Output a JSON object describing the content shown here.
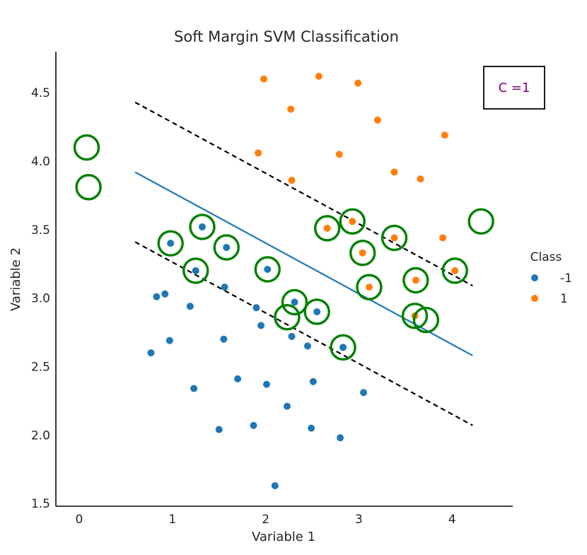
{
  "chart_data": {
    "type": "scatter",
    "title": "Soft Margin SVM Classification",
    "xlabel": "Variable 1",
    "ylabel": "Variable 2",
    "xlim": [
      -0.25,
      4.65
    ],
    "ylim": [
      1.48,
      4.8
    ],
    "xticks": [
      0,
      1,
      2,
      3,
      4
    ],
    "xtick_labels": [
      "0",
      "1",
      "2",
      "3",
      "4"
    ],
    "yticks": [
      1.5,
      2.0,
      2.5,
      3.0,
      3.5,
      4.0,
      4.5
    ],
    "ytick_labels": [
      "1.5",
      "2.0",
      "2.5",
      "3.0",
      "3.5",
      "4.0",
      "4.5"
    ],
    "grid": false,
    "legend": {
      "title": "Class",
      "placement": "outside-right",
      "entries": [
        {
          "label": "-1",
          "color": "#1f77b4"
        },
        {
          "label": "1",
          "color": "#ff7f0e"
        }
      ]
    },
    "annotation": {
      "text": "C =1",
      "color": "#800080",
      "placement": "top-right"
    },
    "series": [
      {
        "name": "-1",
        "color": "#1f77b4",
        "points": [
          [
            0.77,
            2.6
          ],
          [
            0.83,
            3.01
          ],
          [
            0.92,
            3.03
          ],
          [
            0.97,
            2.69
          ],
          [
            0.98,
            3.4
          ],
          [
            1.19,
            2.94
          ],
          [
            1.23,
            2.34
          ],
          [
            1.25,
            3.2
          ],
          [
            1.32,
            3.52
          ],
          [
            1.5,
            2.04
          ],
          [
            1.55,
            2.7
          ],
          [
            1.56,
            3.08
          ],
          [
            1.58,
            3.37
          ],
          [
            1.7,
            2.41
          ],
          [
            1.87,
            2.07
          ],
          [
            1.9,
            2.93
          ],
          [
            1.95,
            2.8
          ],
          [
            2.01,
            2.37
          ],
          [
            2.02,
            3.21
          ],
          [
            2.1,
            1.63
          ],
          [
            2.23,
            2.21
          ],
          [
            2.28,
            2.72
          ],
          [
            2.31,
            2.97
          ],
          [
            2.45,
            2.65
          ],
          [
            2.49,
            2.05
          ],
          [
            2.51,
            2.39
          ],
          [
            2.55,
            2.9
          ],
          [
            2.8,
            1.98
          ],
          [
            2.83,
            2.64
          ],
          [
            3.05,
            2.31
          ]
        ]
      },
      {
        "name": "1",
        "color": "#ff7f0e",
        "points": [
          [
            1.92,
            4.06
          ],
          [
            1.98,
            4.6
          ],
          [
            2.27,
            4.38
          ],
          [
            2.28,
            3.86
          ],
          [
            2.57,
            4.62
          ],
          [
            2.66,
            3.51
          ],
          [
            2.79,
            4.05
          ],
          [
            2.93,
            3.56
          ],
          [
            2.99,
            4.57
          ],
          [
            3.04,
            3.33
          ],
          [
            3.11,
            3.08
          ],
          [
            3.2,
            4.3
          ],
          [
            3.38,
            3.92
          ],
          [
            3.38,
            3.44
          ],
          [
            3.6,
            2.87
          ],
          [
            3.61,
            3.13
          ],
          [
            3.66,
            3.87
          ],
          [
            3.9,
            3.44
          ],
          [
            3.92,
            4.19
          ],
          [
            4.03,
            3.2
          ]
        ]
      }
    ],
    "support_vectors": {
      "color": "#008000",
      "points": [
        [
          0.08,
          4.1
        ],
        [
          0.1,
          3.81
        ],
        [
          0.98,
          3.4
        ],
        [
          1.25,
          3.2
        ],
        [
          1.32,
          3.52
        ],
        [
          1.58,
          3.37
        ],
        [
          2.02,
          3.21
        ],
        [
          2.23,
          2.86
        ],
        [
          2.31,
          2.97
        ],
        [
          2.55,
          2.9
        ],
        [
          2.66,
          3.51
        ],
        [
          2.83,
          2.64
        ],
        [
          2.93,
          3.56
        ],
        [
          3.04,
          3.33
        ],
        [
          3.11,
          3.08
        ],
        [
          3.38,
          3.44
        ],
        [
          3.6,
          2.87
        ],
        [
          3.61,
          3.13
        ],
        [
          3.72,
          2.84
        ],
        [
          4.03,
          3.2
        ],
        [
          4.31,
          3.56
        ]
      ]
    },
    "decision_boundary": {
      "color": "#1f77b4",
      "x": [
        0.6,
        4.22
      ],
      "y": [
        3.92,
        2.58
      ]
    },
    "margins": [
      {
        "color": "#000000",
        "x": [
          0.6,
          4.22
        ],
        "y": [
          4.43,
          3.09
        ]
      },
      {
        "color": "#000000",
        "x": [
          0.6,
          4.22
        ],
        "y": [
          3.41,
          2.07
        ]
      }
    ]
  }
}
